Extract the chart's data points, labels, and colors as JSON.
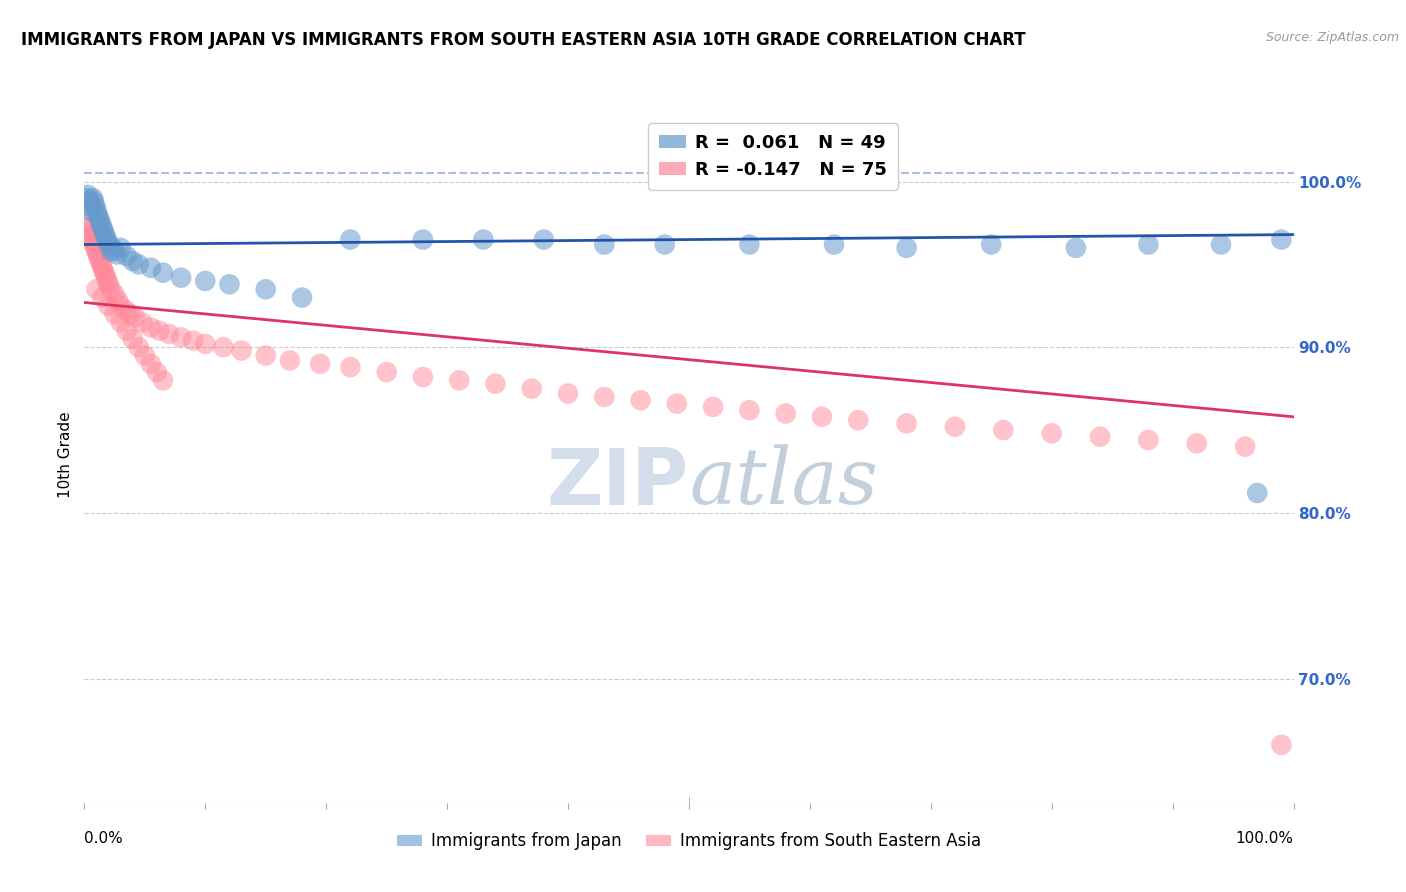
{
  "title": "IMMIGRANTS FROM JAPAN VS IMMIGRANTS FROM SOUTH EASTERN ASIA 10TH GRADE CORRELATION CHART",
  "source": "Source: ZipAtlas.com",
  "ylabel": "10th Grade",
  "ytick_labels": [
    "100.0%",
    "90.0%",
    "80.0%",
    "70.0%"
  ],
  "ytick_values": [
    1.0,
    0.9,
    0.8,
    0.7
  ],
  "xlim": [
    0.0,
    1.0
  ],
  "ylim": [
    0.625,
    1.045
  ],
  "blue_scatter_x": [
    0.002,
    0.003,
    0.004,
    0.005,
    0.006,
    0.007,
    0.008,
    0.009,
    0.01,
    0.011,
    0.012,
    0.013,
    0.014,
    0.015,
    0.016,
    0.017,
    0.018,
    0.019,
    0.02,
    0.022,
    0.023,
    0.025,
    0.027,
    0.03,
    0.035,
    0.04,
    0.045,
    0.055,
    0.065,
    0.08,
    0.1,
    0.12,
    0.15,
    0.18,
    0.22,
    0.28,
    0.33,
    0.38,
    0.43,
    0.48,
    0.55,
    0.62,
    0.68,
    0.75,
    0.82,
    0.88,
    0.94,
    0.97,
    0.99
  ],
  "blue_scatter_y": [
    0.99,
    0.992,
    0.988,
    0.985,
    0.982,
    0.99,
    0.988,
    0.985,
    0.983,
    0.98,
    0.978,
    0.976,
    0.974,
    0.972,
    0.97,
    0.968,
    0.966,
    0.964,
    0.962,
    0.958,
    0.96,
    0.958,
    0.956,
    0.96,
    0.955,
    0.952,
    0.95,
    0.948,
    0.945,
    0.942,
    0.94,
    0.938,
    0.935,
    0.93,
    0.965,
    0.965,
    0.965,
    0.965,
    0.962,
    0.962,
    0.962,
    0.962,
    0.96,
    0.962,
    0.96,
    0.962,
    0.962,
    0.812,
    0.965
  ],
  "pink_scatter_x": [
    0.002,
    0.003,
    0.004,
    0.005,
    0.006,
    0.007,
    0.008,
    0.009,
    0.01,
    0.011,
    0.012,
    0.013,
    0.014,
    0.015,
    0.016,
    0.017,
    0.018,
    0.019,
    0.02,
    0.022,
    0.025,
    0.028,
    0.03,
    0.035,
    0.038,
    0.042,
    0.048,
    0.055,
    0.062,
    0.07,
    0.08,
    0.09,
    0.1,
    0.115,
    0.13,
    0.15,
    0.17,
    0.195,
    0.22,
    0.25,
    0.28,
    0.31,
    0.34,
    0.37,
    0.4,
    0.43,
    0.46,
    0.49,
    0.52,
    0.55,
    0.58,
    0.61,
    0.64,
    0.68,
    0.72,
    0.76,
    0.8,
    0.84,
    0.88,
    0.92,
    0.96,
    0.99,
    0.01,
    0.015,
    0.02,
    0.025,
    0.03,
    0.035,
    0.04,
    0.045,
    0.05,
    0.055,
    0.06,
    0.065
  ],
  "pink_scatter_y": [
    0.975,
    0.972,
    0.97,
    0.968,
    0.966,
    0.964,
    0.962,
    0.96,
    0.958,
    0.956,
    0.954,
    0.952,
    0.95,
    0.948,
    0.946,
    0.944,
    0.942,
    0.94,
    0.938,
    0.935,
    0.932,
    0.928,
    0.925,
    0.922,
    0.92,
    0.918,
    0.915,
    0.912,
    0.91,
    0.908,
    0.906,
    0.904,
    0.902,
    0.9,
    0.898,
    0.895,
    0.892,
    0.89,
    0.888,
    0.885,
    0.882,
    0.88,
    0.878,
    0.875,
    0.872,
    0.87,
    0.868,
    0.866,
    0.864,
    0.862,
    0.86,
    0.858,
    0.856,
    0.854,
    0.852,
    0.85,
    0.848,
    0.846,
    0.844,
    0.842,
    0.84,
    0.66,
    0.935,
    0.93,
    0.925,
    0.92,
    0.915,
    0.91,
    0.905,
    0.9,
    0.895,
    0.89,
    0.885,
    0.88
  ],
  "blue_line_y_start": 0.962,
  "blue_line_y_end": 0.968,
  "pink_line_y_start": 0.927,
  "pink_line_y_end": 0.858,
  "blue_dashed_line_y": 1.005,
  "background_color": "#ffffff",
  "grid_color": "#cccccc",
  "blue_color": "#6699cc",
  "pink_color": "#ff8899",
  "blue_line_color": "#2255aa",
  "pink_line_color": "#dd3366",
  "blue_dashed_color": "#aabbdd",
  "title_fontsize": 12,
  "axis_label_fontsize": 11,
  "tick_label_fontsize": 11,
  "watermark_color": "#ccd8e8",
  "watermark_fontsize": 56
}
